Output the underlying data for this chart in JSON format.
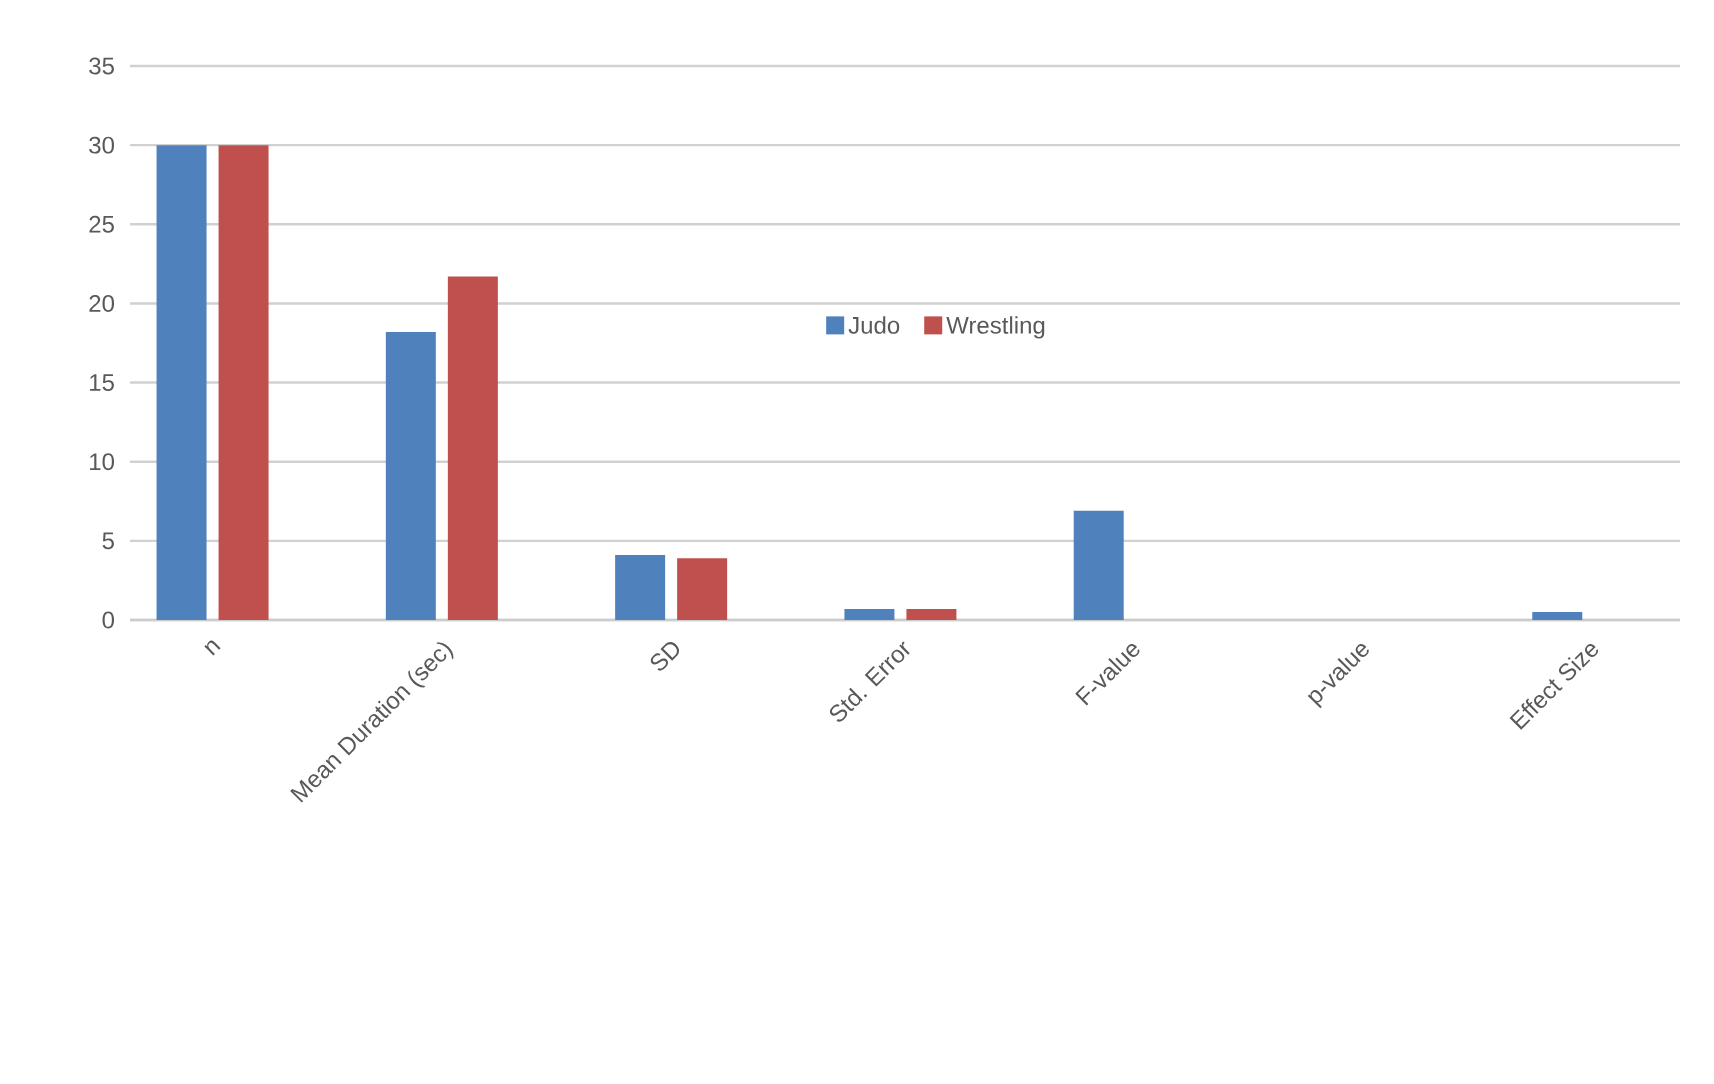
{
  "chart_data": {
    "type": "bar",
    "categories": [
      "n",
      "Mean Duration (sec)",
      "SD",
      "Std. Error",
      "F-value",
      "p-value",
      "Effect Size"
    ],
    "series": [
      {
        "name": "Judo",
        "color": "#4f81bd",
        "values": [
          30,
          18.2,
          4.1,
          0.7,
          6.9,
          0,
          0.5
        ]
      },
      {
        "name": "Wrestling",
        "color": "#c0504d",
        "values": [
          30,
          21.7,
          3.9,
          0.7,
          null,
          null,
          null
        ]
      }
    ],
    "ylim": [
      0,
      35
    ],
    "yticks": [
      0,
      5,
      10,
      15,
      20,
      25,
      30,
      35
    ],
    "grid": "y",
    "legend": "top"
  }
}
